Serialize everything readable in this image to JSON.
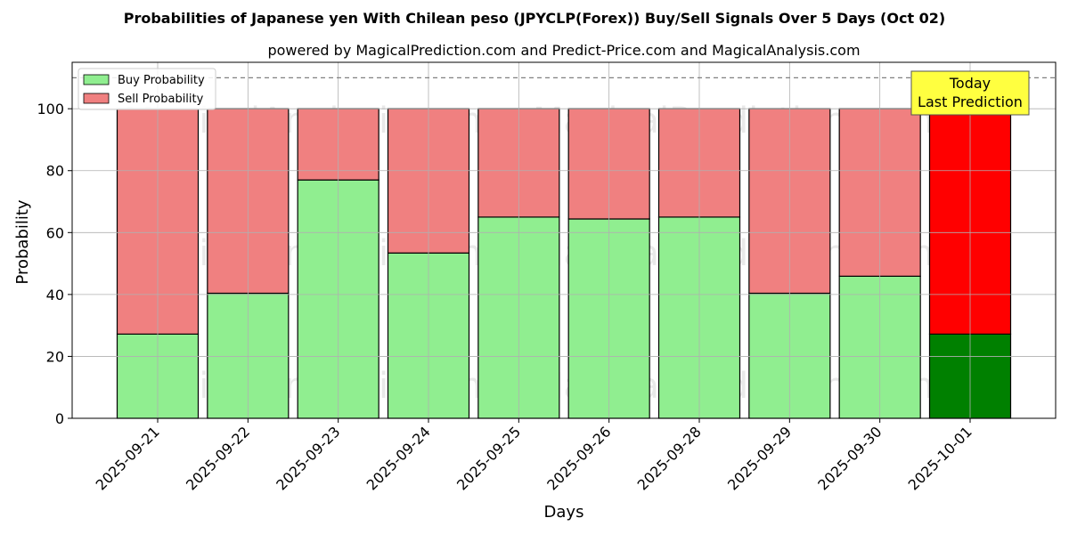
{
  "chart_data": {
    "type": "bar",
    "stacked": true,
    "title": "Probabilities of Japanese yen With Chilean peso (JPYCLP(Forex)) Buy/Sell Signals Over 5 Days (Oct 02)",
    "subtitle": "powered by MagicalPrediction.com and Predict-Price.com and MagicalAnalysis.com",
    "xlabel": "Days",
    "ylabel": "Probability",
    "ylim": [
      0,
      115
    ],
    "yticks": [
      0,
      20,
      40,
      60,
      80,
      100
    ],
    "grid": true,
    "legend_position": "top-left",
    "categories": [
      "2025-09-21",
      "2025-09-22",
      "2025-09-23",
      "2025-09-24",
      "2025-09-25",
      "2025-09-26",
      "2025-09-28",
      "2025-09-29",
      "2025-09-30",
      "2025-10-01"
    ],
    "series": [
      {
        "name": "Buy Probability",
        "values": [
          27.2,
          40.4,
          77.0,
          53.4,
          65.0,
          64.4,
          65.0,
          40.4,
          45.9,
          27.2
        ]
      },
      {
        "name": "Sell Probability",
        "values": [
          72.8,
          59.6,
          23.0,
          46.6,
          35.0,
          35.6,
          35.0,
          59.6,
          54.1,
          72.8
        ]
      }
    ],
    "reference_line": {
      "y": 110,
      "style": "dashed"
    },
    "annotation": {
      "lines": [
        "Today",
        "Last Prediction"
      ],
      "category": "2025-10-01"
    },
    "watermarks": [
      "MagicalAnalysis.com",
      "MagicalPrediction.com"
    ],
    "colors": {
      "buy": "#90ee90",
      "sell": "#f08080",
      "buy_highlight": "#008000",
      "sell_highlight": "#ff0000",
      "annotation_bg": "#ffff40",
      "grid": "#b0b0b0",
      "reference_line": "#808080"
    },
    "highlight_index": 9
  }
}
